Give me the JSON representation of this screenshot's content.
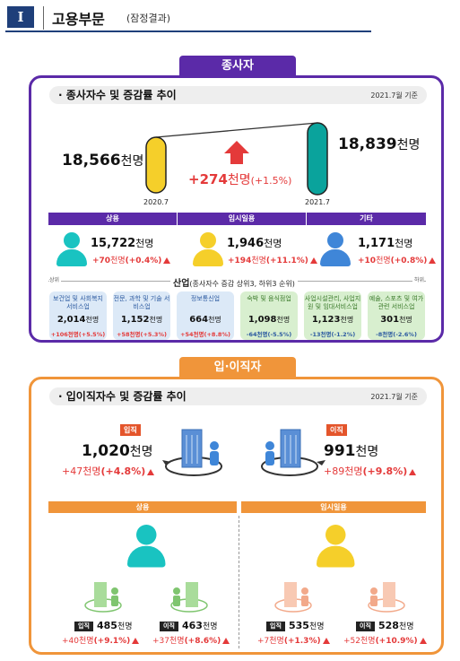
{
  "header": {
    "numeral": "Ⅰ",
    "title": "고용부문",
    "subtitle": "(잠정결과)"
  },
  "employees": {
    "tab": "종사자",
    "section_title": "· 종사자수 및 증감률 추이",
    "reference": "2021.7월 기준",
    "prev": {
      "value": "18,566",
      "unit": "천명",
      "period": "2020.7"
    },
    "curr": {
      "value": "18,839",
      "unit": "천명",
      "period": "2021.7"
    },
    "change_value": "+274",
    "change_unit": "천명",
    "change_rate": "(+1.5%)",
    "categories": [
      {
        "label": "상용",
        "value": "15,722",
        "unit": "천명",
        "chg": "+70",
        "chg_unit": "천명",
        "rate": "(+0.4%)"
      },
      {
        "label": "임시일용",
        "value": "1,946",
        "unit": "천명",
        "chg": "+194",
        "chg_unit": "천명",
        "rate": "(+11.1%)"
      },
      {
        "label": "기타",
        "value": "1,171",
        "unit": "천명",
        "chg": "+10",
        "chg_unit": "천명",
        "rate": "(+0.8%)"
      }
    ],
    "industry_title": "산업",
    "industry_note": "(종사자수 증감 상위3, 하위3 순위)",
    "upper_label": "상위",
    "lower_label": "하위",
    "industries": [
      {
        "name": "보건업 및 사회복지 서비스업",
        "value": "2,014",
        "unit": "천명",
        "chg": "+106천명(+5.5%)",
        "dir": "up"
      },
      {
        "name": "전문, 과학 및 기술 서비스업",
        "value": "1,152",
        "unit": "천명",
        "chg": "+58천명(+5.3%)",
        "dir": "up"
      },
      {
        "name": "정보통신업",
        "value": "664",
        "unit": "천명",
        "chg": "+54천명(+8.8%)",
        "dir": "up"
      },
      {
        "name": "숙박 및 음식점업",
        "value": "1,098",
        "unit": "천명",
        "chg": "-64천명(-5.5%)",
        "dir": "down"
      },
      {
        "name": "사업시설관리, 사업지원 및 임대서비스업",
        "value": "1,123",
        "unit": "천명",
        "chg": "-13천명(-1.2%)",
        "dir": "down"
      },
      {
        "name": "예술, 스포츠 및 여가관련 서비스업",
        "value": "301",
        "unit": "천명",
        "chg": "-8천명(-2.6%)",
        "dir": "down"
      }
    ]
  },
  "turnover": {
    "tab": "입·이직자",
    "section_title": "· 입이직자수 및 증감률 추이",
    "reference": "2021.7월 기준",
    "entry": {
      "tag": "입직",
      "value": "1,020",
      "unit": "천명",
      "chg": "+47",
      "chg_unit": "천명",
      "rate": "(+4.8%)"
    },
    "exit": {
      "tag": "이직",
      "value": "991",
      "unit": "천명",
      "chg": "+89",
      "chg_unit": "천명",
      "rate": "(+9.8%)"
    },
    "groups": [
      {
        "label": "상용",
        "entry": {
          "tag": "입직",
          "value": "485",
          "unit": "천명",
          "chg": "+40",
          "chg_unit": "천명",
          "rate": "(+9.1%)"
        },
        "exit": {
          "tag": "이직",
          "value": "463",
          "unit": "천명",
          "chg": "+37",
          "chg_unit": "천명",
          "rate": "(+8.6%)"
        }
      },
      {
        "label": "임시일용",
        "entry": {
          "tag": "입직",
          "value": "535",
          "unit": "천명",
          "chg": "+7",
          "chg_unit": "천명",
          "rate": "(+1.3%)"
        },
        "exit": {
          "tag": "이직",
          "value": "528",
          "unit": "천명",
          "chg": "+52",
          "chg_unit": "천명",
          "rate": "(+10.9%)"
        }
      }
    ]
  },
  "colors": {
    "purple": "#5b2aa8",
    "orange": "#f0953a",
    "red": "#e43a3a",
    "blue": "#2c5aa0",
    "teal": "#0aa39c",
    "yellow": "#f5cf2a",
    "cyan": "#19c3c1",
    "skyblue": "#3f86d8"
  }
}
